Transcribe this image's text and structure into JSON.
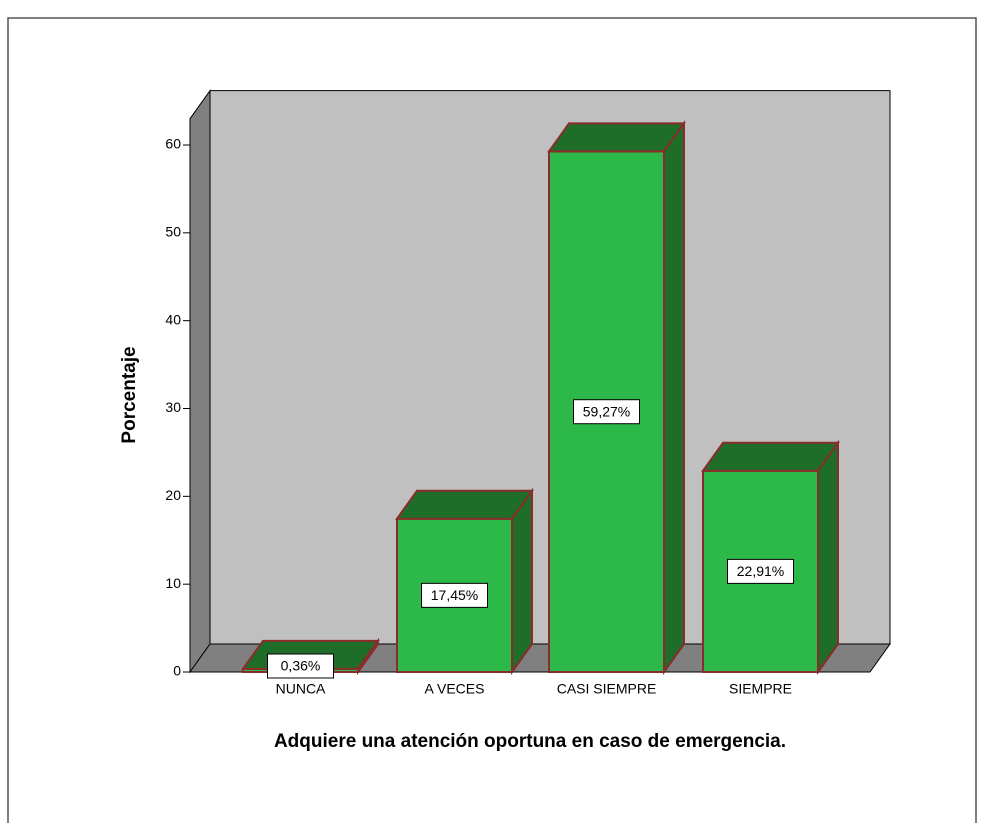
{
  "chart_data": {
    "type": "bar3d",
    "xlabel": "Adquiere una atención oportuna en caso de emergencia.",
    "ylabel": "Porcentaje",
    "categories": [
      "NUNCA",
      "A VECES",
      "CASI SIEMPRE",
      "SIEMPRE"
    ],
    "values": [
      0.36,
      17.45,
      59.27,
      22.91
    ],
    "value_labels": [
      "0,36%",
      "17,45%",
      "59,27%",
      "22,91%"
    ],
    "color": "#2db84a",
    "ylim": [
      0,
      63
    ],
    "yticks": [
      0,
      10,
      20,
      30,
      40,
      50,
      60
    ]
  }
}
